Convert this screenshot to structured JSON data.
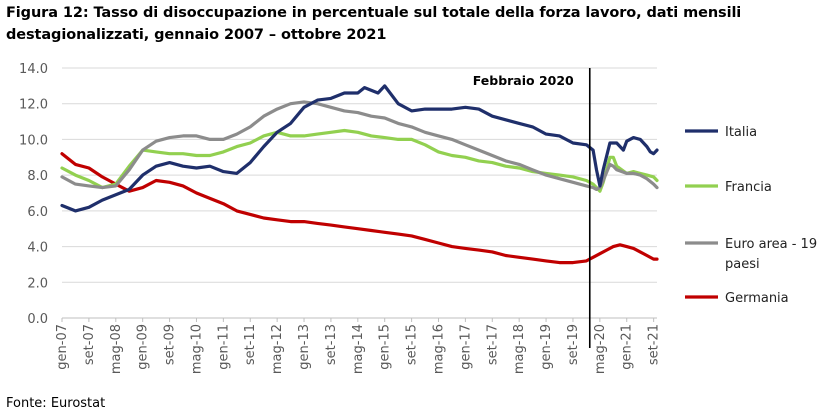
{
  "header": {
    "title": "Figura 12: Tasso di disoccupazione in percentuale sul totale della forza lavoro, dati mensili destagionalizzati, gennaio 2007 – ottobre 2021"
  },
  "footer": {
    "source": "Fonte: Eurostat"
  },
  "chart_data": {
    "type": "line",
    "title": "Figura 12: Tasso di disoccupazione in percentuale sul totale della forza lavoro, dati mensili destagionalizzati, gennaio 2007 – ottobre 2021",
    "xlabel": "",
    "ylabel": "",
    "ylim": [
      0,
      14
    ],
    "y_ticks": [
      "0.0",
      "2.0",
      "4.0",
      "6.0",
      "8.0",
      "10.0",
      "12.0",
      "14.0"
    ],
    "x_tick_labels": [
      "gen-07",
      "set-07",
      "mag-08",
      "gen-09",
      "set-09",
      "mag-10",
      "gen-11",
      "set-11",
      "mag-12",
      "gen-13",
      "set-13",
      "mag-14",
      "gen-15",
      "set-15",
      "mag-16",
      "gen-17",
      "set-17",
      "mag-18",
      "gen-19",
      "set-19",
      "mag-20",
      "gen-21",
      "set-21"
    ],
    "x_range": [
      "gen-07",
      "ott-21"
    ],
    "annotation": {
      "label": "Febbraio 2020",
      "x_month_index": 157
    },
    "series": [
      {
        "name": "Italia",
        "color": "#1f2f6b",
        "points": [
          [
            0,
            6.3
          ],
          [
            4,
            6.0
          ],
          [
            8,
            6.2
          ],
          [
            12,
            6.6
          ],
          [
            16,
            6.9
          ],
          [
            20,
            7.2
          ],
          [
            24,
            8.0
          ],
          [
            28,
            8.5
          ],
          [
            32,
            8.7
          ],
          [
            36,
            8.5
          ],
          [
            40,
            8.4
          ],
          [
            44,
            8.5
          ],
          [
            48,
            8.2
          ],
          [
            52,
            8.1
          ],
          [
            56,
            8.7
          ],
          [
            60,
            9.6
          ],
          [
            64,
            10.4
          ],
          [
            68,
            10.9
          ],
          [
            72,
            11.8
          ],
          [
            76,
            12.2
          ],
          [
            80,
            12.3
          ],
          [
            84,
            12.6
          ],
          [
            88,
            12.6
          ],
          [
            90,
            12.9
          ],
          [
            94,
            12.6
          ],
          [
            96,
            13.0
          ],
          [
            100,
            12.0
          ],
          [
            104,
            11.6
          ],
          [
            108,
            11.7
          ],
          [
            112,
            11.7
          ],
          [
            116,
            11.7
          ],
          [
            120,
            11.8
          ],
          [
            124,
            11.7
          ],
          [
            128,
            11.3
          ],
          [
            132,
            11.1
          ],
          [
            136,
            10.9
          ],
          [
            140,
            10.7
          ],
          [
            144,
            10.3
          ],
          [
            148,
            10.2
          ],
          [
            152,
            9.8
          ],
          [
            156,
            9.7
          ],
          [
            158,
            9.4
          ],
          [
            159,
            8.3
          ],
          [
            160,
            7.4
          ],
          [
            161,
            8.3
          ],
          [
            163,
            9.8
          ],
          [
            165,
            9.8
          ],
          [
            167,
            9.4
          ],
          [
            168,
            9.9
          ],
          [
            170,
            10.1
          ],
          [
            172,
            10.0
          ],
          [
            174,
            9.6
          ],
          [
            175,
            9.3
          ],
          [
            176,
            9.2
          ],
          [
            177,
            9.4
          ]
        ]
      },
      {
        "name": "Francia",
        "color": "#92d050",
        "points": [
          [
            0,
            8.4
          ],
          [
            4,
            8.0
          ],
          [
            8,
            7.7
          ],
          [
            12,
            7.3
          ],
          [
            16,
            7.5
          ],
          [
            20,
            8.5
          ],
          [
            24,
            9.4
          ],
          [
            28,
            9.3
          ],
          [
            32,
            9.2
          ],
          [
            36,
            9.2
          ],
          [
            40,
            9.1
          ],
          [
            44,
            9.1
          ],
          [
            48,
            9.3
          ],
          [
            52,
            9.6
          ],
          [
            56,
            9.8
          ],
          [
            60,
            10.2
          ],
          [
            64,
            10.4
          ],
          [
            68,
            10.2
          ],
          [
            72,
            10.2
          ],
          [
            76,
            10.3
          ],
          [
            80,
            10.4
          ],
          [
            84,
            10.5
          ],
          [
            88,
            10.4
          ],
          [
            92,
            10.2
          ],
          [
            96,
            10.1
          ],
          [
            100,
            10.0
          ],
          [
            104,
            10.0
          ],
          [
            108,
            9.7
          ],
          [
            112,
            9.3
          ],
          [
            116,
            9.1
          ],
          [
            120,
            9.0
          ],
          [
            124,
            8.8
          ],
          [
            128,
            8.7
          ],
          [
            132,
            8.5
          ],
          [
            136,
            8.4
          ],
          [
            140,
            8.2
          ],
          [
            144,
            8.1
          ],
          [
            148,
            8.0
          ],
          [
            152,
            7.9
          ],
          [
            156,
            7.7
          ],
          [
            158,
            7.5
          ],
          [
            159,
            7.3
          ],
          [
            160,
            7.1
          ],
          [
            161,
            7.6
          ],
          [
            163,
            9.0
          ],
          [
            164,
            9.0
          ],
          [
            165,
            8.5
          ],
          [
            168,
            8.1
          ],
          [
            170,
            8.2
          ],
          [
            172,
            8.1
          ],
          [
            174,
            8.0
          ],
          [
            176,
            7.9
          ],
          [
            177,
            7.7
          ]
        ]
      },
      {
        "name": "Euro area - 19 paesi",
        "color": "#8c8c8c",
        "points": [
          [
            0,
            7.9
          ],
          [
            4,
            7.5
          ],
          [
            8,
            7.4
          ],
          [
            12,
            7.3
          ],
          [
            16,
            7.4
          ],
          [
            20,
            8.3
          ],
          [
            24,
            9.4
          ],
          [
            28,
            9.9
          ],
          [
            32,
            10.1
          ],
          [
            36,
            10.2
          ],
          [
            40,
            10.2
          ],
          [
            44,
            10.0
          ],
          [
            48,
            10.0
          ],
          [
            52,
            10.3
          ],
          [
            56,
            10.7
          ],
          [
            60,
            11.3
          ],
          [
            64,
            11.7
          ],
          [
            68,
            12.0
          ],
          [
            72,
            12.1
          ],
          [
            76,
            12.0
          ],
          [
            80,
            11.8
          ],
          [
            84,
            11.6
          ],
          [
            88,
            11.5
          ],
          [
            92,
            11.3
          ],
          [
            96,
            11.2
          ],
          [
            100,
            10.9
          ],
          [
            104,
            10.7
          ],
          [
            108,
            10.4
          ],
          [
            112,
            10.2
          ],
          [
            116,
            10.0
          ],
          [
            120,
            9.7
          ],
          [
            124,
            9.4
          ],
          [
            128,
            9.1
          ],
          [
            132,
            8.8
          ],
          [
            136,
            8.6
          ],
          [
            140,
            8.3
          ],
          [
            144,
            8.0
          ],
          [
            148,
            7.8
          ],
          [
            152,
            7.6
          ],
          [
            156,
            7.4
          ],
          [
            158,
            7.3
          ],
          [
            159,
            7.2
          ],
          [
            160,
            7.3
          ],
          [
            161,
            7.7
          ],
          [
            163,
            8.6
          ],
          [
            164,
            8.5
          ],
          [
            165,
            8.3
          ],
          [
            168,
            8.1
          ],
          [
            170,
            8.1
          ],
          [
            172,
            8.0
          ],
          [
            174,
            7.8
          ],
          [
            176,
            7.5
          ],
          [
            177,
            7.3
          ]
        ]
      },
      {
        "name": "Germania",
        "color": "#c00000",
        "points": [
          [
            0,
            9.2
          ],
          [
            4,
            8.6
          ],
          [
            8,
            8.4
          ],
          [
            12,
            7.9
          ],
          [
            16,
            7.5
          ],
          [
            20,
            7.1
          ],
          [
            24,
            7.3
          ],
          [
            28,
            7.7
          ],
          [
            32,
            7.6
          ],
          [
            36,
            7.4
          ],
          [
            40,
            7.0
          ],
          [
            44,
            6.7
          ],
          [
            48,
            6.4
          ],
          [
            52,
            6.0
          ],
          [
            56,
            5.8
          ],
          [
            60,
            5.6
          ],
          [
            64,
            5.5
          ],
          [
            68,
            5.4
          ],
          [
            72,
            5.4
          ],
          [
            76,
            5.3
          ],
          [
            80,
            5.2
          ],
          [
            84,
            5.1
          ],
          [
            88,
            5.0
          ],
          [
            92,
            4.9
          ],
          [
            96,
            4.8
          ],
          [
            100,
            4.7
          ],
          [
            104,
            4.6
          ],
          [
            108,
            4.4
          ],
          [
            112,
            4.2
          ],
          [
            116,
            4.0
          ],
          [
            120,
            3.9
          ],
          [
            124,
            3.8
          ],
          [
            128,
            3.7
          ],
          [
            132,
            3.5
          ],
          [
            136,
            3.4
          ],
          [
            140,
            3.3
          ],
          [
            144,
            3.2
          ],
          [
            148,
            3.1
          ],
          [
            152,
            3.1
          ],
          [
            156,
            3.2
          ],
          [
            158,
            3.4
          ],
          [
            160,
            3.6
          ],
          [
            162,
            3.8
          ],
          [
            164,
            4.0
          ],
          [
            166,
            4.1
          ],
          [
            168,
            4.0
          ],
          [
            170,
            3.9
          ],
          [
            172,
            3.7
          ],
          [
            174,
            3.5
          ],
          [
            176,
            3.3
          ],
          [
            177,
            3.3
          ]
        ]
      }
    ],
    "legend": {
      "position": "right",
      "entries": [
        {
          "series": "Italia",
          "label_lines": [
            "Italia"
          ]
        },
        {
          "series": "Francia",
          "label_lines": [
            "Francia"
          ]
        },
        {
          "series": "Euro area - 19 paesi",
          "label_lines": [
            "Euro area - 19",
            "paesi"
          ]
        },
        {
          "series": "Germania",
          "label_lines": [
            "Germania"
          ]
        }
      ]
    }
  }
}
